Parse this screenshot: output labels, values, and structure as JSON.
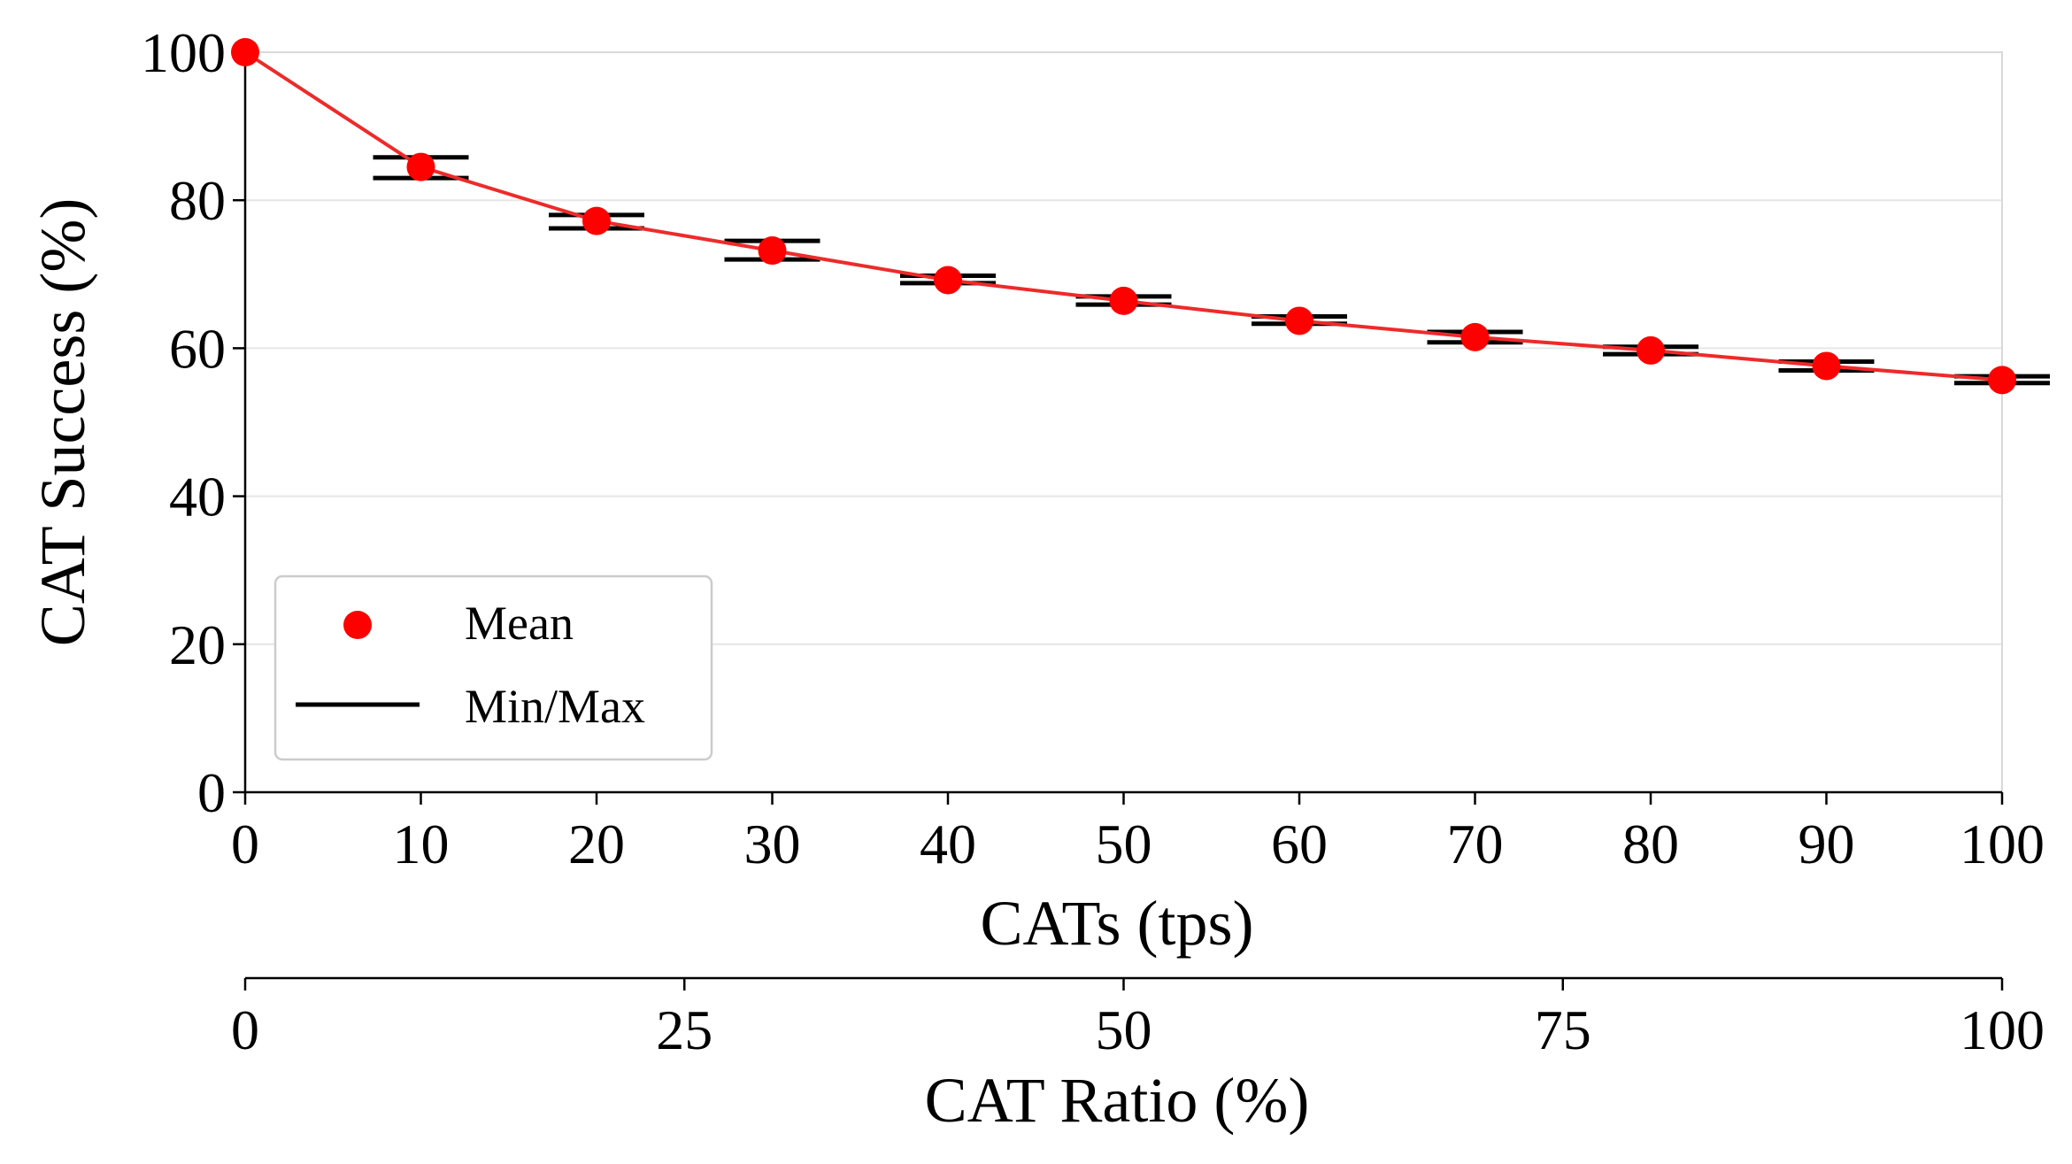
{
  "chart_data": {
    "type": "line",
    "x": [
      0,
      10,
      20,
      30,
      40,
      50,
      60,
      70,
      80,
      90,
      100
    ],
    "series": [
      {
        "name": "Mean",
        "marker": "circle",
        "color": "#ff0000",
        "line_color": "#ee2a2a",
        "values": [
          100,
          84.5,
          77.2,
          73.2,
          69.2,
          66.4,
          63.7,
          61.5,
          59.7,
          57.6,
          55.7
        ]
      },
      {
        "name": "Min/Max",
        "color": "#000000",
        "min": [
          null,
          83.0,
          76.2,
          72.0,
          68.8,
          65.9,
          63.3,
          60.8,
          59.2,
          57.0,
          55.3
        ],
        "max": [
          null,
          85.8,
          78.0,
          74.5,
          69.8,
          67.0,
          64.3,
          62.2,
          60.2,
          58.2,
          56.2
        ]
      }
    ],
    "xlabel": "CATs (tps)",
    "ylabel": "CAT Success (%)",
    "xlim": [
      0,
      100
    ],
    "ylim": [
      0,
      100
    ],
    "xticks": [
      "0",
      "10",
      "20",
      "30",
      "40",
      "50",
      "60",
      "70",
      "80",
      "90",
      "100"
    ],
    "yticks": [
      "0",
      "20",
      "40",
      "60",
      "80",
      "100"
    ],
    "secondary_xaxis": {
      "label": "CAT Ratio (%)",
      "range": [
        0,
        100
      ],
      "ticks": [
        "0",
        "25",
        "50",
        "75",
        "100"
      ]
    },
    "grid": "y",
    "legend": "lower-left"
  }
}
